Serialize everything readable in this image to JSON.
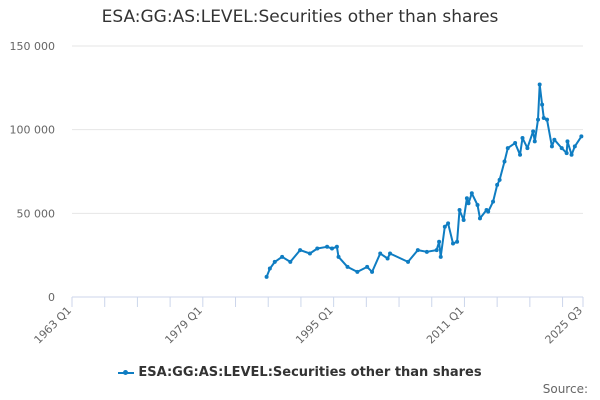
{
  "chart_data": {
    "type": "line",
    "title": "ESA:GG:AS:LEVEL:Securities other than shares",
    "xlabel": "",
    "ylabel": "",
    "xlim": [
      1963.0,
      2025.5
    ],
    "ylim": [
      0,
      150000
    ],
    "yticks": [
      {
        "value": 0,
        "label": "0"
      },
      {
        "value": 50000,
        "label": "50 000"
      },
      {
        "value": 100000,
        "label": "100 000"
      },
      {
        "value": 150000,
        "label": "150 000"
      }
    ],
    "xticks": [
      {
        "value": 1963.0,
        "label": "1963 Q1"
      },
      {
        "value": 1979.0,
        "label": "1979 Q1"
      },
      {
        "value": 1995.0,
        "label": "1995 Q1"
      },
      {
        "value": 2011.0,
        "label": "2011 Q1"
      },
      {
        "value": 2025.5,
        "label": "2025 Q3"
      }
    ],
    "grid": true,
    "legend_position": "bottom-center",
    "series": [
      {
        "name": "ESA:GG:AS:LEVEL:Securities other than shares",
        "color": "#0f7dc2",
        "x": [
          1986.8,
          1987.2,
          1987.8,
          1988.7,
          1989.7,
          1990.9,
          1992.1,
          1993.0,
          1994.2,
          1994.8,
          1995.4,
          1995.6,
          1996.7,
          1997.9,
          1999.1,
          1999.7,
          2000.7,
          2001.6,
          2001.9,
          2004.1,
          2005.3,
          2006.4,
          2007.6,
          2007.9,
          2008.1,
          2008.6,
          2009.0,
          2009.6,
          2010.1,
          2010.4,
          2010.9,
          2011.3,
          2011.5,
          2011.9,
          2012.6,
          2012.9,
          2013.7,
          2013.9,
          2014.5,
          2015.0,
          2015.3,
          2015.9,
          2016.3,
          2017.2,
          2017.8,
          2018.1,
          2018.7,
          2019.4,
          2019.6,
          2020.0,
          2020.2,
          2020.5,
          2020.7,
          2021.1,
          2021.7,
          2022.0,
          2022.9,
          2023.5,
          2023.6,
          2024.1,
          2024.5,
          2025.3
        ],
        "values": [
          12000,
          17000,
          21000,
          24000,
          21000,
          28000,
          26000,
          29000,
          30000,
          29000,
          30000,
          24000,
          18000,
          15000,
          18000,
          15000,
          26000,
          23000,
          26000,
          21000,
          28000,
          27000,
          28000,
          33000,
          24000,
          42000,
          44000,
          32000,
          33000,
          52000,
          46000,
          59000,
          56000,
          62000,
          55000,
          47000,
          52000,
          51000,
          57000,
          67000,
          70000,
          81000,
          89000,
          92000,
          85000,
          95000,
          89000,
          99000,
          93000,
          106000,
          127000,
          115000,
          107000,
          106000,
          90000,
          94000,
          89000,
          86000,
          93000,
          85000,
          90000,
          96000
        ]
      }
    ]
  },
  "legend": {
    "label": "ESA:GG:AS:LEVEL:Securities other than shares"
  },
  "source": "Source:"
}
